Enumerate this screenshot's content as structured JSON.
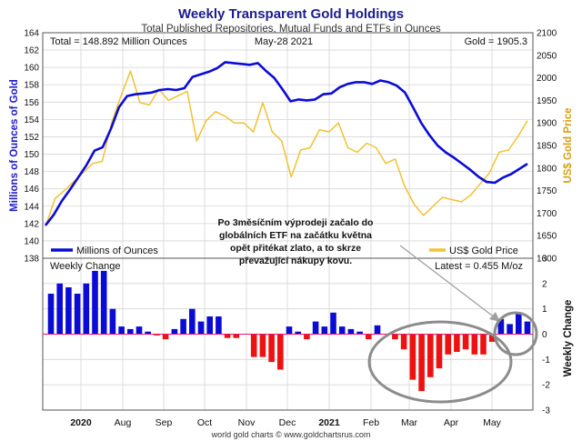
{
  "chart_data": {
    "type": "line",
    "title": "Weekly Transparent Gold Holdings",
    "subtitle": "Total Published Repositories, Mutual Funds and ETFs in Ounces",
    "info": {
      "total": "Total = 148.892 Million Ounces",
      "date": "May-28  2021",
      "gold": "Gold = 1905.3",
      "latest": "Latest = 0.455 M/oz"
    },
    "top_panel": {
      "ylabel_left": "Millions of Ounces of Gold",
      "ylabel_right": "US$ Gold Price",
      "yleft_range": [
        138,
        164
      ],
      "yleft_ticks": [
        138,
        140,
        142,
        144,
        146,
        148,
        150,
        152,
        154,
        156,
        158,
        160,
        162,
        164
      ],
      "yright_range": [
        1600,
        2100
      ],
      "yright_ticks": [
        1600,
        1650,
        1700,
        1750,
        1800,
        1850,
        1900,
        1950,
        2000,
        2050,
        2100
      ],
      "grid": true,
      "legend": [
        {
          "label": "Millions of Ounces",
          "color": "#0b0bd6",
          "position": "bottom-left"
        },
        {
          "label": "US$ Gold Price",
          "color": "#f1c232",
          "position": "bottom-right"
        }
      ],
      "series": [
        {
          "name": "Millions of Ounces",
          "axis": "left",
          "color": "#0b0bd6",
          "values": [
            141.8,
            143.0,
            144.6,
            145.9,
            147.3,
            148.7,
            150.4,
            150.8,
            152.9,
            155.4,
            156.7,
            156.9,
            157.0,
            157.1,
            157.4,
            157.5,
            157.4,
            157.6,
            158.9,
            159.2,
            159.5,
            159.9,
            160.6,
            160.5,
            160.4,
            160.3,
            160.5,
            159.6,
            158.8,
            157.5,
            156.1,
            156.3,
            156.2,
            156.3,
            156.9,
            157.0,
            157.7,
            158.1,
            158.3,
            158.3,
            158.1,
            158.5,
            158.3,
            157.9,
            157.1,
            155.4,
            153.6,
            152.2,
            151.0,
            150.2,
            149.6,
            148.9,
            148.2,
            147.4,
            146.8,
            146.7,
            147.3,
            147.7,
            148.3,
            148.892
          ]
        },
        {
          "name": "US$ Gold Price",
          "axis": "right",
          "color": "#f1c232",
          "values": [
            1670,
            1732,
            1750,
            1770,
            1790,
            1810,
            1815,
            1900,
            1960,
            2015,
            1945,
            1940,
            1975,
            1950,
            1960,
            1970,
            1860,
            1905,
            1925,
            1915,
            1900,
            1900,
            1880,
            1945,
            1880,
            1860,
            1780,
            1840,
            1845,
            1885,
            1880,
            1900,
            1845,
            1835,
            1855,
            1845,
            1810,
            1820,
            1760,
            1720,
            1695,
            1715,
            1735,
            1730,
            1725,
            1740,
            1765,
            1790,
            1835,
            1840,
            1870,
            1905
          ]
        }
      ]
    },
    "bottom_panel": {
      "type": "bar",
      "title": "Weekly Change",
      "ylabel_right": "Weekly Change",
      "ylim": [
        -3,
        3
      ],
      "yticks": [
        -3,
        -2,
        -1,
        0,
        1,
        2,
        3
      ],
      "colors": {
        "positive": "#0b0bd6",
        "negative": "#ee1111"
      },
      "values": [
        1.6,
        2.0,
        1.85,
        1.6,
        2.0,
        2.5,
        2.5,
        1.0,
        0.3,
        0.2,
        0.3,
        0.1,
        -0.05,
        -0.2,
        0.2,
        0.6,
        1.0,
        0.5,
        0.7,
        0.7,
        -0.15,
        -0.15,
        0.0,
        -0.9,
        -0.9,
        -1.1,
        -1.4,
        0.3,
        0.1,
        -0.2,
        0.5,
        0.3,
        0.85,
        0.3,
        0.2,
        0.1,
        -0.2,
        0.35,
        0.0,
        -0.2,
        -0.6,
        -1.8,
        -2.25,
        -1.7,
        -1.35,
        -0.8,
        -0.7,
        -0.6,
        -0.8,
        -0.8,
        -0.3,
        0.6,
        0.4,
        0.8,
        0.5
      ],
      "annotation": {
        "lines": [
          "Po 3měsíčním výprodeji začalo do",
          "globálních ETF na začátku května",
          "opět přitékat zlato, a to skrze",
          "převažující nákupy kovu."
        ]
      }
    },
    "x_axis": {
      "year_labels": [
        "2020",
        "2021"
      ],
      "months": [
        "Aug",
        "Sep",
        "Oct",
        "Nov",
        "Dec",
        "Feb",
        "Mar",
        "Apr",
        "May"
      ]
    },
    "credit": "world gold charts © www.goldchartsrus.com"
  }
}
